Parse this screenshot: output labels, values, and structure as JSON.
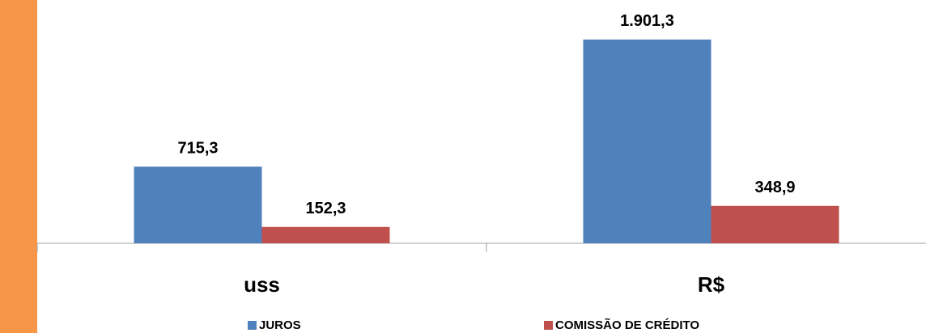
{
  "chart_data": {
    "type": "bar",
    "categories": [
      "uss",
      "R$"
    ],
    "series": [
      {
        "name": "JUROS",
        "color": "#4f81bd",
        "values": [
          715.3,
          1901.3
        ],
        "value_labels": [
          "715,3",
          "1.901,3"
        ]
      },
      {
        "name": "COMISSÃO DE CRÉDITO",
        "color": "#c0504d",
        "values": [
          152.3,
          348.9
        ],
        "value_labels": [
          "152,3",
          "348,9"
        ]
      }
    ],
    "ylim": [
      0,
      2270
    ]
  }
}
